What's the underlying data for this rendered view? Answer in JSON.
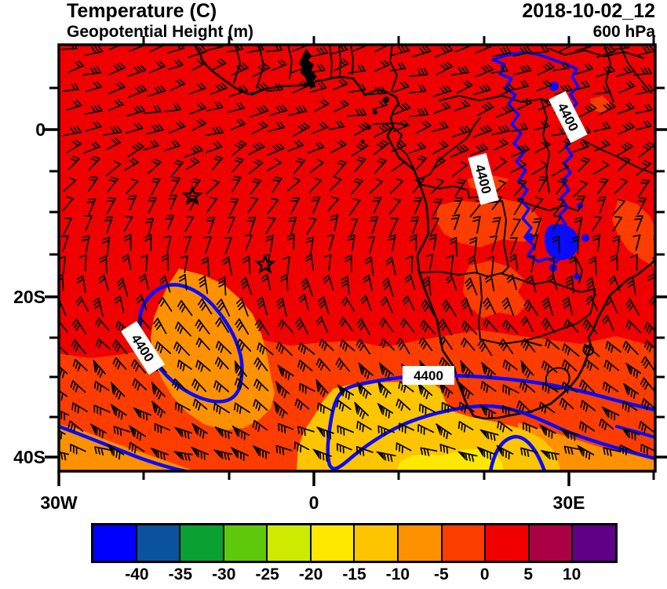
{
  "header": {
    "title": "Temperature (C)",
    "subtitle": "Geopotential Height (m)",
    "datetime": "2018-10-02_12",
    "level": "600 hPa"
  },
  "axes": {
    "y_labels": [
      "0",
      "20S",
      "40S"
    ],
    "x_labels": [
      "30W",
      "0",
      "30E"
    ]
  },
  "contours": {
    "label": "4400"
  },
  "colorbar": {
    "tick_labels": [
      "-40",
      "-35",
      "-30",
      "-25",
      "-20",
      "-15",
      "-10",
      "-5",
      "0",
      "5",
      "10"
    ],
    "colors": [
      "#0000ff",
      "#0a529e",
      "#0aa032",
      "#5ec90a",
      "#cdeb00",
      "#ffe800",
      "#fdc400",
      "#fe9100",
      "#fd3c00",
      "#f00000",
      "#aa0044",
      "#5f0087"
    ]
  },
  "map_colors": {
    "red": "#f00000",
    "orange_red": "#fd3c00",
    "orange": "#fe9100",
    "amber": "#fdc400",
    "yellow": "#ffe800",
    "contour_blue": "#0a0aff",
    "border_black": "#000000"
  }
}
